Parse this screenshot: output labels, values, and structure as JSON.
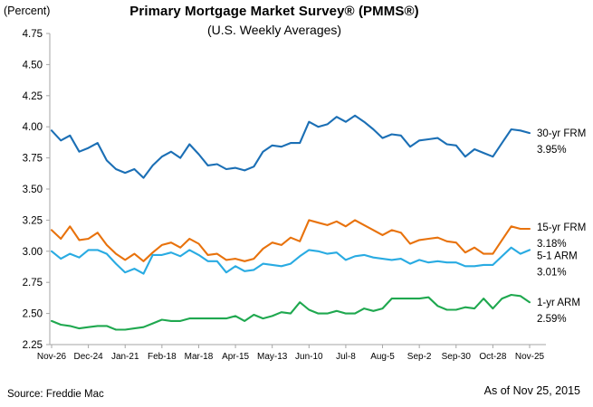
{
  "header": {
    "percent_label": "(Percent)",
    "title": "Primary Mortgage Market Survey® (PMMS®)",
    "subtitle": "(U.S. Weekly Averages)"
  },
  "footer": {
    "source": "Source: Freddie Mac",
    "as_of": "As of Nov 25, 2015"
  },
  "chart_data": {
    "type": "line",
    "title": "Primary Mortgage Market Survey® (PMMS®)",
    "subtitle": "(U.S. Weekly Averages)",
    "ylabel": "(Percent)",
    "ylim": [
      2.25,
      4.75
    ],
    "ytick_step": 0.25,
    "ytick_labels": [
      "4.75",
      "4.50",
      "4.25",
      "4.00",
      "3.75",
      "3.50",
      "3.25",
      "3.00",
      "2.75",
      "2.50",
      "2.25"
    ],
    "grid": false,
    "legend_position": "right of line ends",
    "axis_color": "#a6a6a6",
    "x_tick_labels": [
      "Nov-26",
      "Dec-24",
      "Jan-21",
      "Feb-18",
      "Mar-18",
      "Apr-15",
      "May-13",
      "Jun-10",
      "Jul-8",
      "Aug-5",
      "Sep-2",
      "Sep-30",
      "Oct-28",
      "Nov-25"
    ],
    "x_tick_indices": [
      0,
      4,
      8,
      12,
      16,
      20,
      24,
      28,
      32,
      36,
      40,
      44,
      48,
      52
    ],
    "points_per_series": 53,
    "series": [
      {
        "name": "30-yr FRM",
        "end_label": "3.95%",
        "color": "#1b6fb5",
        "values": [
          3.97,
          3.89,
          3.93,
          3.8,
          3.83,
          3.87,
          3.73,
          3.66,
          3.63,
          3.66,
          3.59,
          3.69,
          3.76,
          3.8,
          3.75,
          3.86,
          3.78,
          3.69,
          3.7,
          3.66,
          3.67,
          3.65,
          3.68,
          3.8,
          3.85,
          3.84,
          3.87,
          3.87,
          4.04,
          4.0,
          4.02,
          4.08,
          4.04,
          4.09,
          4.04,
          3.98,
          3.91,
          3.94,
          3.93,
          3.84,
          3.89,
          3.9,
          3.91,
          3.86,
          3.85,
          3.76,
          3.82,
          3.79,
          3.76,
          3.87,
          3.98,
          3.97,
          3.95
        ]
      },
      {
        "name": "15-yr FRM",
        "end_label": "3.18%",
        "color": "#e8720c",
        "values": [
          3.17,
          3.1,
          3.2,
          3.09,
          3.1,
          3.15,
          3.05,
          2.98,
          2.93,
          2.98,
          2.92,
          2.99,
          3.05,
          3.07,
          3.03,
          3.1,
          3.06,
          2.97,
          2.98,
          2.93,
          2.94,
          2.92,
          2.94,
          3.02,
          3.07,
          3.05,
          3.11,
          3.08,
          3.25,
          3.23,
          3.21,
          3.24,
          3.2,
          3.25,
          3.21,
          3.17,
          3.13,
          3.17,
          3.15,
          3.06,
          3.09,
          3.1,
          3.11,
          3.08,
          3.07,
          2.99,
          3.03,
          2.98,
          2.98,
          3.09,
          3.2,
          3.18,
          3.18
        ]
      },
      {
        "name": "5-1 ARM",
        "end_label": "3.01%",
        "color": "#29abe2",
        "values": [
          3.0,
          2.94,
          2.98,
          2.95,
          3.01,
          3.01,
          2.98,
          2.9,
          2.83,
          2.86,
          2.82,
          2.97,
          2.97,
          2.99,
          2.96,
          3.01,
          2.97,
          2.92,
          2.92,
          2.83,
          2.88,
          2.84,
          2.85,
          2.9,
          2.89,
          2.88,
          2.9,
          2.96,
          3.01,
          3.0,
          2.98,
          2.99,
          2.93,
          2.96,
          2.97,
          2.95,
          2.94,
          2.93,
          2.94,
          2.9,
          2.93,
          2.91,
          2.92,
          2.91,
          2.91,
          2.88,
          2.88,
          2.89,
          2.89,
          2.96,
          3.03,
          2.98,
          3.01
        ]
      },
      {
        "name": "1-yr ARM",
        "end_label": "2.59%",
        "color": "#1fa84f",
        "values": [
          2.44,
          2.41,
          2.4,
          2.38,
          2.39,
          2.4,
          2.4,
          2.37,
          2.37,
          2.38,
          2.39,
          2.42,
          2.45,
          2.44,
          2.44,
          2.46,
          2.46,
          2.46,
          2.46,
          2.46,
          2.48,
          2.44,
          2.49,
          2.46,
          2.48,
          2.51,
          2.5,
          2.59,
          2.53,
          2.5,
          2.5,
          2.52,
          2.5,
          2.5,
          2.54,
          2.52,
          2.54,
          2.62,
          2.62,
          2.62,
          2.62,
          2.63,
          2.56,
          2.53,
          2.53,
          2.55,
          2.54,
          2.62,
          2.54,
          2.62,
          2.65,
          2.64,
          2.59
        ]
      }
    ]
  }
}
